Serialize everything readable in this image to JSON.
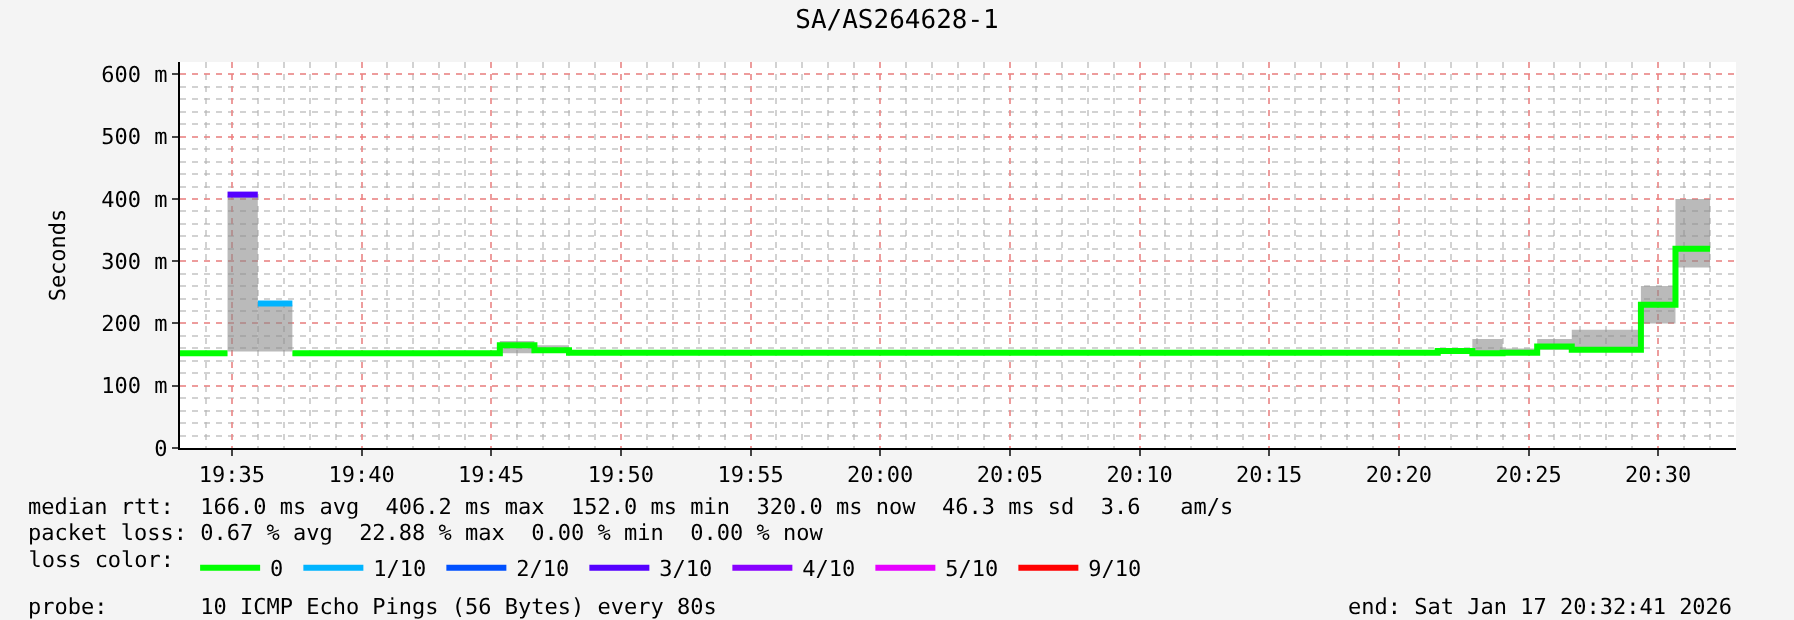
{
  "chart_data": {
    "type": "step",
    "title": "SA/AS264628-1",
    "ylabel": "Seconds",
    "legend_title": "loss color:",
    "xlim": [
      "2026-01-17T19:33",
      "2026-01-17T20:33"
    ],
    "xticks": [
      {
        "value": "2026-01-17T19:35",
        "label": "19:35"
      },
      {
        "value": "2026-01-17T19:40",
        "label": "19:40"
      },
      {
        "value": "2026-01-17T19:45",
        "label": "19:45"
      },
      {
        "value": "2026-01-17T19:50",
        "label": "19:50"
      },
      {
        "value": "2026-01-17T19:55",
        "label": "19:55"
      },
      {
        "value": "2026-01-17T20:00",
        "label": "20:00"
      },
      {
        "value": "2026-01-17T20:05",
        "label": "20:05"
      },
      {
        "value": "2026-01-17T20:10",
        "label": "20:10"
      },
      {
        "value": "2026-01-17T20:15",
        "label": "20:15"
      },
      {
        "value": "2026-01-17T20:20",
        "label": "20:20"
      },
      {
        "value": "2026-01-17T20:25",
        "label": "20:25"
      },
      {
        "value": "2026-01-17T20:30",
        "label": "20:30"
      }
    ],
    "ylim": [
      0,
      620
    ],
    "yticks": [
      0,
      {
        "value": 100,
        "label": "100 m"
      },
      {
        "value": 200,
        "label": "200 m"
      },
      {
        "value": 300,
        "label": "300 m"
      },
      {
        "value": 400,
        "label": "400 m"
      },
      {
        "value": 500,
        "label": "500 m"
      },
      {
        "value": 600,
        "label": "600 m"
      }
    ],
    "grid": true,
    "legend": "bottom",
    "line_style": "solid",
    "marker": "none",
    "series": [
      {
        "name": "0",
        "color": "#00ff00",
        "x": [
          "2026-01-17T19:33",
          "2026-01-17T19:34:50",
          "2026-01-17T19:35",
          "2026-01-17T19:37:20",
          "2026-01-17T19:45:20",
          "2026-01-17T19:46:40",
          "2026-01-17T19:48",
          "2026-01-17T20:21:30",
          "2026-01-17T20:22:50",
          "2026-01-17T20:24",
          "2026-01-17T20:25:20",
          "2026-01-17T20:26:40",
          "2026-01-17T20:29:20",
          "2026-01-17T20:30:40",
          "2026-01-17T20:32"
        ],
        "values": [
          152,
          152,
          null,
          152,
          165,
          157,
          153,
          156,
          152,
          153,
          163,
          158,
          230,
          320,
          320
        ],
        "lower": [
          null,
          null,
          null,
          152,
          152,
          155,
          152,
          155,
          150,
          152,
          158,
          155,
          200,
          290,
          290
        ],
        "upper": [
          null,
          null,
          null,
          152,
          172,
          165,
          155,
          157,
          175,
          160,
          175,
          190,
          260,
          400,
          400
        ]
      },
      {
        "name": "1/10",
        "color": "#00b4ff",
        "x": [
          "2026-01-17T19:36",
          "2026-01-17T19:37:20"
        ],
        "values": [
          232,
          232
        ],
        "lower": [
          155,
          155
        ],
        "upper": [
          230,
          230
        ]
      },
      {
        "name": "2/10",
        "color": "#0050ff"
      },
      {
        "name": "3/10",
        "color": "#5500ff",
        "x": [
          "2026-01-17T19:34:50",
          "2026-01-17T19:36"
        ],
        "values": [
          407,
          407
        ],
        "lower": [
          155,
          155
        ],
        "upper": [
          405,
          405
        ]
      },
      {
        "name": "4/10",
        "color": "#8800ff"
      },
      {
        "name": "5/10",
        "color": "#e600ff"
      },
      {
        "name": "9/10",
        "color": "#ff0000"
      }
    ],
    "annotations": [
      "median rtt:  166.0 ms avg  406.2 ms max  152.0 ms min  320.0 ms now  46.3 ms sd  3.6   am/s",
      "packet loss: 0.67 % avg  22.88 % max  0.00 % min  0.00 % now",
      "probe:       10 ICMP Echo Pings (56 Bytes) every 80s",
      "end: Sat Jan 17 20:32:41 2026"
    ]
  }
}
